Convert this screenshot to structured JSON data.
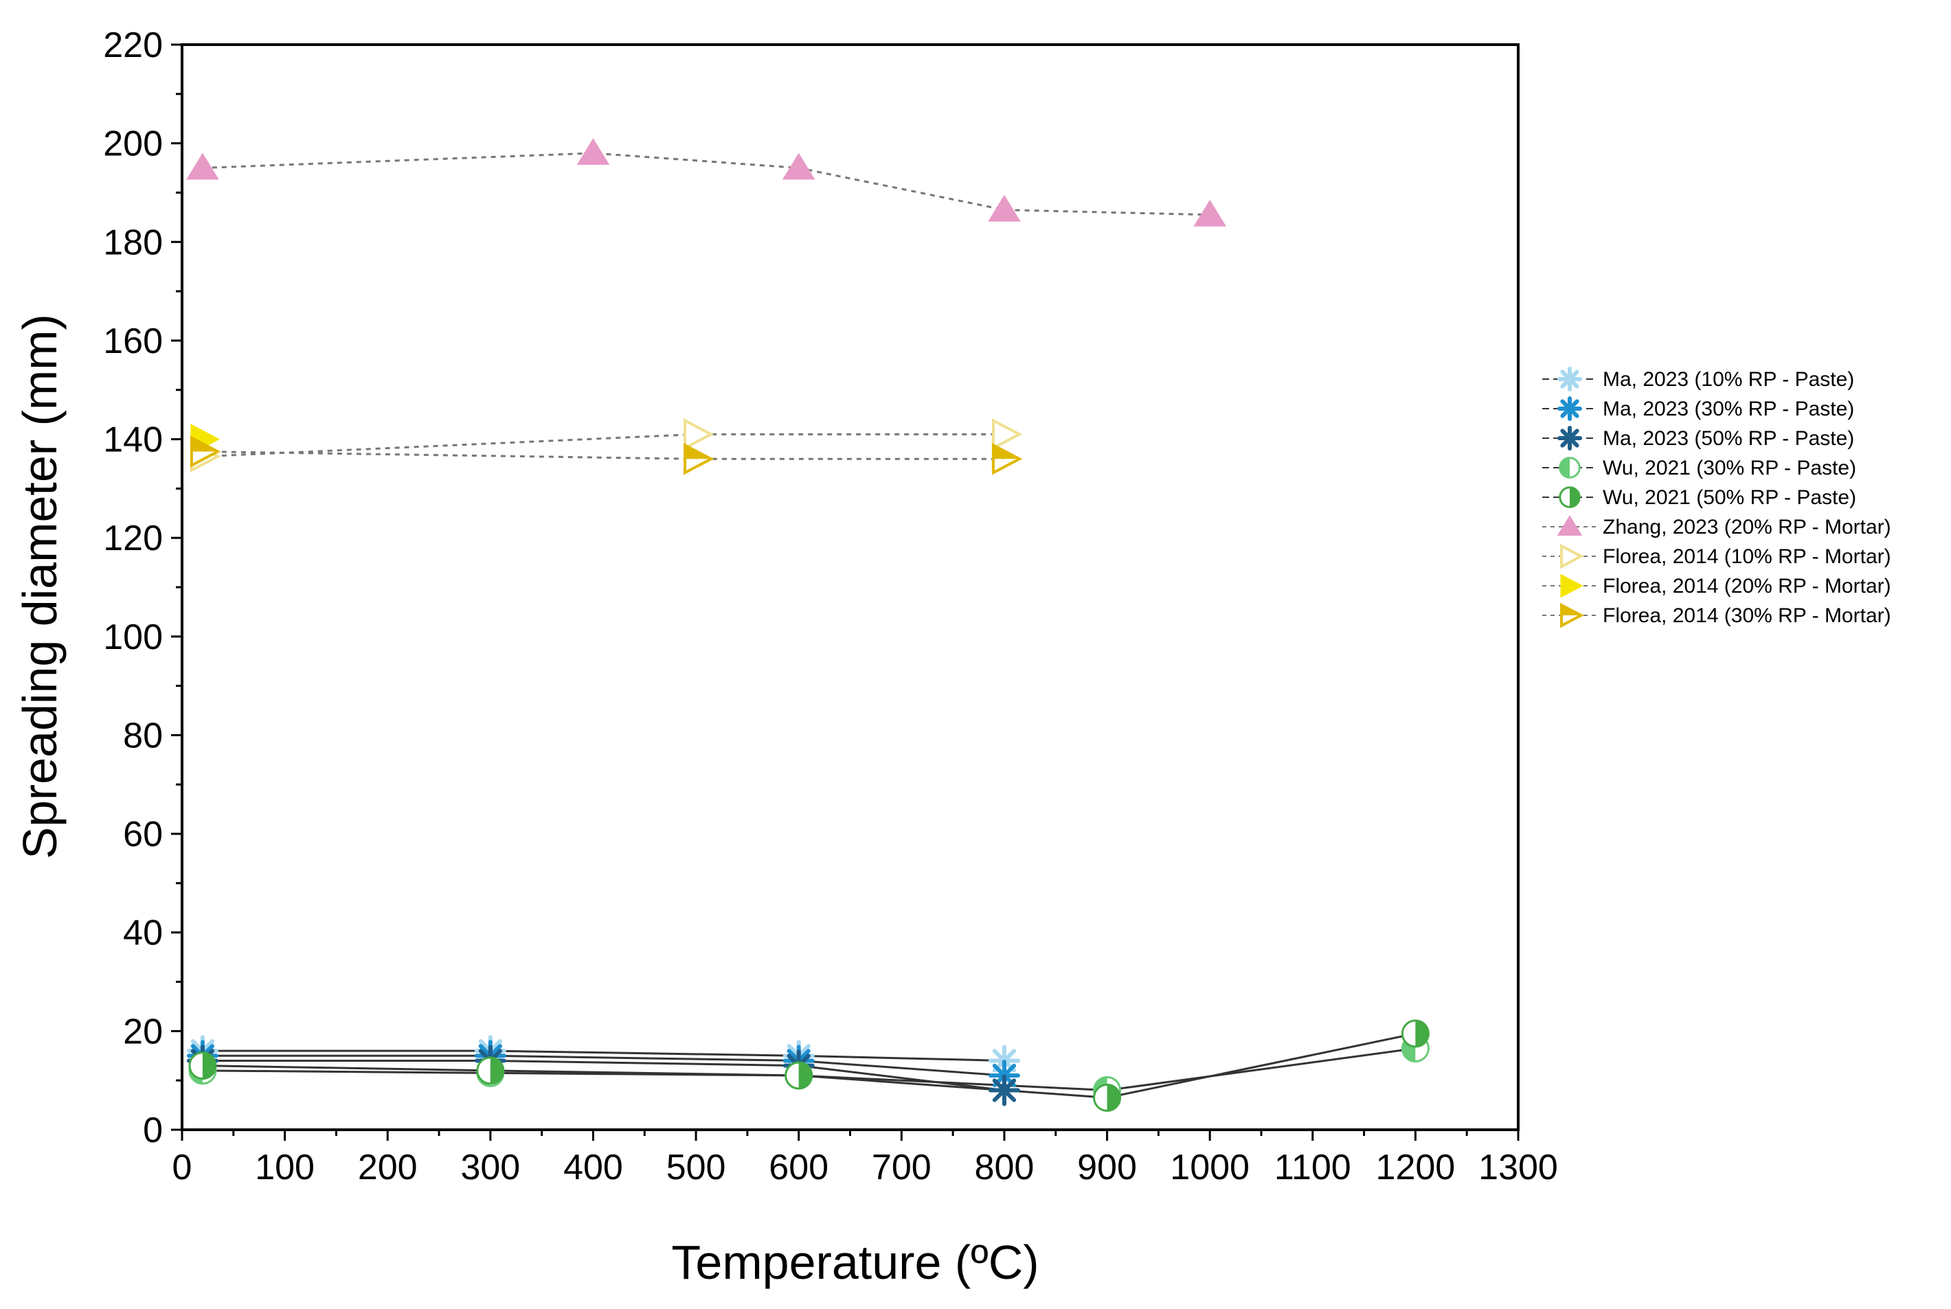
{
  "chart_data": {
    "type": "scatter",
    "xlabel": "Temperature (ºC)",
    "ylabel": "Spreading diameter (mm)",
    "xlim": [
      0,
      1300
    ],
    "ylim": [
      0,
      220
    ],
    "x_ticks": [
      0,
      100,
      200,
      300,
      400,
      500,
      600,
      700,
      800,
      900,
      1000,
      1100,
      1200,
      1300
    ],
    "y_ticks": [
      0,
      20,
      40,
      60,
      80,
      100,
      120,
      140,
      160,
      180,
      200,
      220
    ],
    "grid": false,
    "legend_position": "right",
    "series": [
      {
        "name": "Ma, 2023 (10% RP - Paste)",
        "marker": "asterisk",
        "color": "#a8d8f0",
        "line": "solid",
        "x": [
          20,
          300,
          600,
          800
        ],
        "y": [
          16,
          16,
          15,
          14
        ]
      },
      {
        "name": "Ma, 2023 (30% RP - Paste)",
        "marker": "asterisk",
        "color": "#1e90d0",
        "line": "solid",
        "x": [
          20,
          300,
          600,
          800
        ],
        "y": [
          15,
          15,
          14,
          11
        ]
      },
      {
        "name": "Ma, 2023 (50% RP - Paste)",
        "marker": "asterisk",
        "color": "#1f5f8b",
        "line": "solid",
        "x": [
          20,
          300,
          600,
          800
        ],
        "y": [
          14,
          14,
          13,
          8
        ]
      },
      {
        "name": "Wu, 2021 (30% RP - Paste)",
        "marker": "circle-half-left",
        "color": "#66cc77",
        "line": "solid",
        "x": [
          20,
          300,
          600,
          900,
          1200
        ],
        "y": [
          12,
          11.5,
          11,
          8,
          16.5
        ]
      },
      {
        "name": "Wu, 2021 (50% RP - Paste)",
        "marker": "circle-half-right",
        "color": "#44aa44",
        "line": "solid",
        "x": [
          20,
          300,
          600,
          900,
          1200
        ],
        "y": [
          13,
          12,
          11,
          6.5,
          19.5
        ]
      },
      {
        "name": "Zhang, 2023 (20% RP - Mortar)",
        "marker": "triangle-up",
        "color": "#e89ac7",
        "line": "dotted",
        "x": [
          20,
          400,
          600,
          800,
          1000
        ],
        "y": [
          195,
          198,
          195,
          186.5,
          185.5
        ]
      },
      {
        "name": "Florea, 2014 (10% RP - Mortar)",
        "marker": "triangle-right-open",
        "color": "#f0e090",
        "line": "dotted",
        "x": [
          20,
          500,
          800
        ],
        "y": [
          136.5,
          141,
          141
        ]
      },
      {
        "name": "Florea, 2014 (20% RP - Mortar)",
        "marker": "triangle-right",
        "color": "#f5e600",
        "line": "dotted",
        "x": [
          20
        ],
        "y": [
          140
        ]
      },
      {
        "name": "Florea, 2014 (30% RP - Mortar)",
        "marker": "triangle-right-half",
        "color": "#e0b800",
        "line": "dotted",
        "x": [
          20,
          500,
          800
        ],
        "y": [
          137.5,
          136,
          136
        ]
      }
    ]
  }
}
